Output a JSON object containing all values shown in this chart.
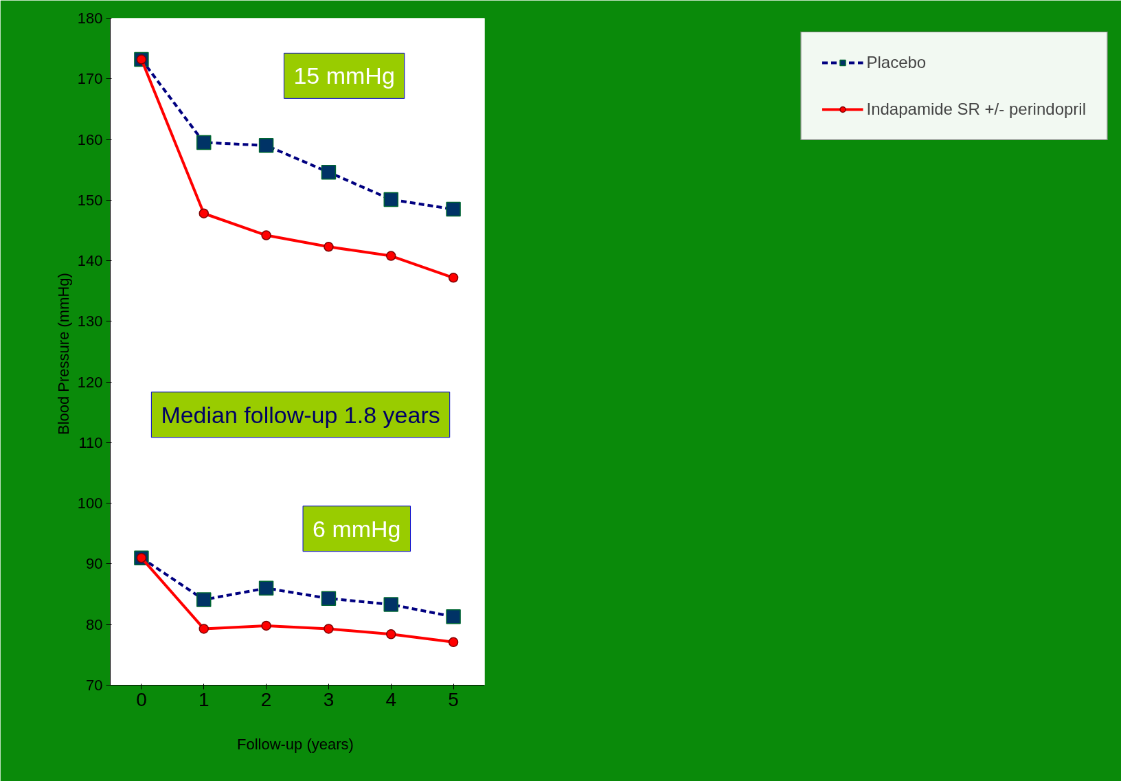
{
  "chart_data": {
    "type": "line",
    "xlabel": "Follow-up  (years)",
    "ylabel": "Blood Pressure  (mmHg)",
    "categories": [
      "0",
      "1",
      "2",
      "3",
      "4",
      "5"
    ],
    "ylim": [
      70,
      180
    ],
    "yticks": [
      70,
      80,
      90,
      100,
      110,
      120,
      130,
      140,
      150,
      160,
      170,
      180
    ],
    "grid": false,
    "legend": "right",
    "series": [
      {
        "name": "Placebo",
        "color": "#000080",
        "marker": "square",
        "line_style": "dashed",
        "values": [
          173.2,
          159.5,
          159.0,
          154.6,
          150.1,
          148.5
        ]
      },
      {
        "name": "Indapamide SR +/- perindopril",
        "color": "#ff0000",
        "marker": "circle",
        "line_style": "solid",
        "values": [
          173.2,
          147.8,
          144.2,
          142.3,
          140.8,
          137.2
        ]
      },
      {
        "color": "#000080",
        "marker": "square",
        "line_style": "dashed",
        "values": [
          91.0,
          84.1,
          86.0,
          84.3,
          83.3,
          81.3
        ]
      },
      {
        "color": "#ff0000",
        "marker": "circle",
        "line_style": "solid",
        "values": [
          91.0,
          79.3,
          79.8,
          79.3,
          78.4,
          77.1
        ]
      }
    ],
    "annotations": [
      "15 mmHg",
      "Median follow-up 1.8 years",
      "6 mmHg"
    ]
  }
}
